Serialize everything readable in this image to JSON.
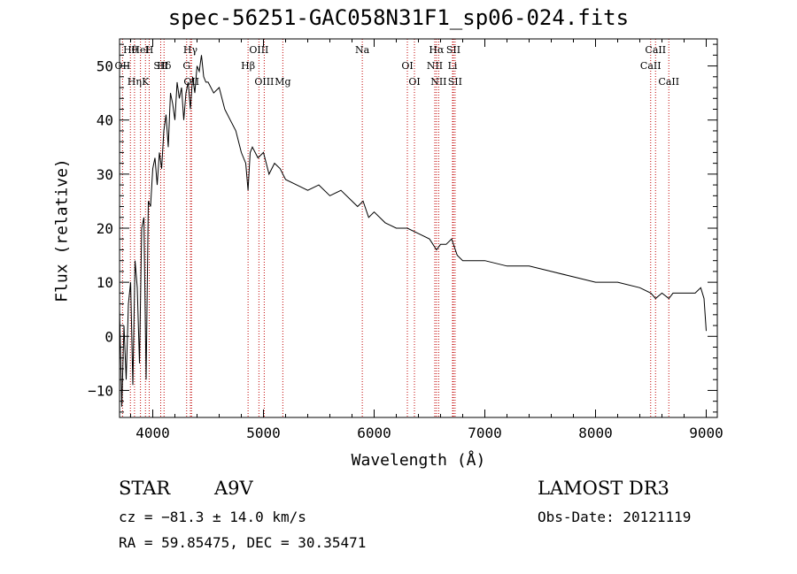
{
  "chart_data": {
    "type": "line",
    "title": "spec-56251-GAC058N31F1_sp06-024.fits",
    "xlabel": "Wavelength (Å)",
    "ylabel": "Flux (relative)",
    "xlim": [
      3700,
      9100
    ],
    "ylim": [
      -15,
      55
    ],
    "xticks": [
      4000,
      5000,
      6000,
      7000,
      8000,
      9000
    ],
    "yticks": [
      -10,
      0,
      10,
      20,
      30,
      40,
      50
    ],
    "grid": false,
    "series": [
      {
        "name": "flux",
        "x": [
          3700,
          3720,
          3740,
          3760,
          3780,
          3800,
          3820,
          3840,
          3860,
          3880,
          3900,
          3920,
          3940,
          3960,
          3980,
          4000,
          4020,
          4040,
          4060,
          4080,
          4100,
          4120,
          4140,
          4160,
          4180,
          4200,
          4220,
          4240,
          4260,
          4280,
          4300,
          4320,
          4340,
          4360,
          4380,
          4400,
          4420,
          4440,
          4460,
          4480,
          4500,
          4550,
          4600,
          4650,
          4700,
          4750,
          4800,
          4840,
          4861,
          4880,
          4900,
          4950,
          5000,
          5050,
          5100,
          5150,
          5200,
          5300,
          5400,
          5500,
          5600,
          5700,
          5800,
          5850,
          5900,
          5950,
          6000,
          6100,
          6200,
          6300,
          6400,
          6500,
          6563,
          6600,
          6650,
          6700,
          6750,
          6800,
          6900,
          7000,
          7200,
          7400,
          7600,
          7800,
          8000,
          8200,
          8400,
          8500,
          8542,
          8600,
          8662,
          8700,
          8800,
          8900,
          8950,
          8980,
          9000
        ],
        "values": [
          5,
          -13,
          2,
          -8,
          6,
          10,
          -9,
          14,
          9,
          -5,
          20,
          22,
          -8,
          25,
          24,
          31,
          33,
          28,
          34,
          31,
          38,
          41,
          35,
          45,
          43,
          40,
          47,
          44,
          46,
          40,
          45,
          47,
          42,
          48,
          45,
          50,
          49,
          52,
          48,
          47,
          47,
          45,
          46,
          42,
          40,
          38,
          34,
          32,
          27,
          34,
          35,
          33,
          34,
          30,
          32,
          31,
          29,
          28,
          27,
          28,
          26,
          27,
          25,
          24,
          25,
          22,
          23,
          21,
          20,
          20,
          19,
          18,
          16,
          17,
          17,
          18,
          15,
          14,
          14,
          14,
          13,
          13,
          12,
          11,
          10,
          10,
          9,
          8,
          7,
          8,
          7,
          8,
          8,
          8,
          9,
          7,
          1
        ]
      }
    ],
    "line_markers": [
      {
        "label": "Hθ",
        "wavelength": 3798
      },
      {
        "label": "OII",
        "wavelength": 3727
      },
      {
        "label": "Hη",
        "wavelength": 3835
      },
      {
        "label": "HeI",
        "wavelength": 3889
      },
      {
        "label": "SII",
        "wavelength": 4072
      },
      {
        "label": "K",
        "wavelength": 3934
      },
      {
        "label": "H",
        "wavelength": 3968
      },
      {
        "label": "Hδ",
        "wavelength": 4102
      },
      {
        "label": "OII",
        "wavelength": 4350
      },
      {
        "label": "Hγ",
        "wavelength": 4340
      },
      {
        "label": "G",
        "wavelength": 4306
      },
      {
        "label": "OIII",
        "wavelength": 5007
      },
      {
        "label": "OIII",
        "wavelength": 4959
      },
      {
        "label": "Hβ",
        "wavelength": 4861
      },
      {
        "label": "Mg",
        "wavelength": 5175
      },
      {
        "label": "Na",
        "wavelength": 5893
      },
      {
        "label": "OI",
        "wavelength": 6300
      },
      {
        "label": "OI",
        "wavelength": 6364
      },
      {
        "label": "Hα",
        "wavelength": 6563
      },
      {
        "label": "NII",
        "wavelength": 6548
      },
      {
        "label": "NII",
        "wavelength": 6583
      },
      {
        "label": "SII",
        "wavelength": 6716
      },
      {
        "label": "Li",
        "wavelength": 6708
      },
      {
        "label": "SII",
        "wavelength": 6731
      },
      {
        "label": "CaII",
        "wavelength": 8542
      },
      {
        "label": "CaII",
        "wavelength": 8498
      },
      {
        "label": "CaII",
        "wavelength": 8662
      }
    ]
  },
  "info": {
    "object_class": "STAR",
    "subclass": "A9V",
    "survey": "LAMOST DR3",
    "redshift": "cz = −81.3 ± 14.0 km/s",
    "obs_date": "Obs-Date: 20121119",
    "coords": "RA =  59.85475, DEC =  30.35471"
  }
}
